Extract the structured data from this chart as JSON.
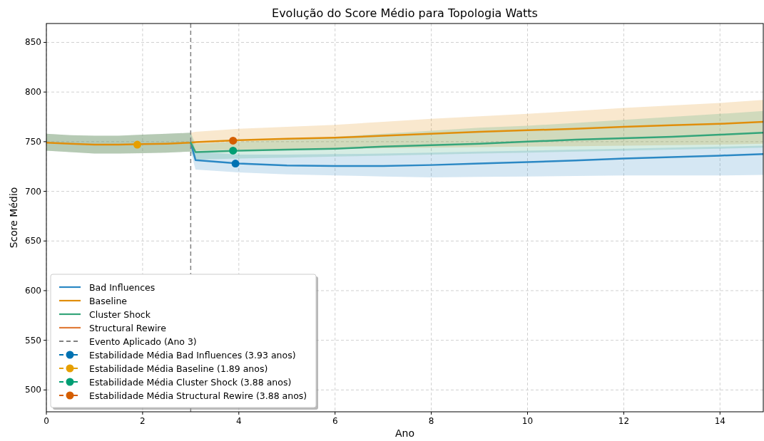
{
  "chart_data": {
    "type": "line",
    "title": "Evolução do Score Médio para Topologia Watts",
    "xlabel": "Ano",
    "ylabel": "Score Médio",
    "xlim": [
      0,
      14.9
    ],
    "xticks": [
      0,
      2,
      4,
      6,
      8,
      10,
      12,
      14
    ],
    "ylim": [
      478,
      869
    ],
    "yticks": [
      500,
      550,
      600,
      650,
      700,
      750,
      800,
      850
    ],
    "grid": true,
    "legend": "bottom left",
    "ref_lines": [
      {
        "axis": "x",
        "value": 3,
        "label": "Evento Aplicado (Ano 3)",
        "color": "#808080",
        "line_style": "dashed"
      }
    ],
    "series": [
      {
        "name": "Bad Influences",
        "color": "#2b88c4",
        "x": [
          0,
          0.5,
          1,
          1.5,
          2,
          2.5,
          3,
          3.1,
          4,
          5,
          6,
          7,
          8,
          9,
          10,
          11,
          12,
          13,
          14,
          14.9
        ],
        "values": [
          null,
          null,
          null,
          null,
          null,
          null,
          749,
          731.5,
          728,
          726,
          725.5,
          725.5,
          726.5,
          728,
          729.5,
          731,
          733,
          734.5,
          736,
          737.5
        ],
        "lower": [
          741,
          739.5,
          738,
          738,
          738.5,
          739,
          740,
          722,
          719,
          717,
          716,
          715,
          714,
          714.5,
          715,
          715.5,
          716,
          716,
          716,
          716.5
        ],
        "upper": [
          758,
          756.5,
          756,
          756,
          757,
          758,
          759,
          740,
          737,
          737,
          737.5,
          738,
          739,
          740,
          741,
          742,
          743,
          744,
          745,
          746
        ]
      },
      {
        "name": "Baseline",
        "color": "#e08e0b",
        "x": [
          0,
          0.5,
          1,
          1.5,
          2,
          2.5,
          3,
          3.1,
          4,
          5,
          6,
          7,
          8,
          9,
          10,
          11,
          12,
          13,
          14,
          14.9
        ],
        "values": [
          749,
          748,
          747,
          747,
          747.5,
          748,
          749,
          749.5,
          751.5,
          753,
          754,
          756,
          758,
          760,
          761.5,
          763,
          765,
          766.5,
          768,
          770
        ],
        "lower": [
          741,
          739.5,
          738,
          738,
          738.5,
          739,
          740,
          741,
          742,
          742.5,
          743,
          743.5,
          744,
          744.5,
          745,
          745.5,
          746,
          746.5,
          747,
          748
        ],
        "upper": [
          758,
          756.5,
          756,
          756,
          757,
          758,
          759,
          760,
          763,
          765,
          767,
          770,
          773,
          775.5,
          778,
          781,
          784,
          786.5,
          789,
          792
        ]
      },
      {
        "name": "Cluster Shock",
        "color": "#34a57a",
        "x": [
          0,
          0.5,
          1,
          1.5,
          2,
          2.5,
          3,
          3.1,
          4,
          5,
          6,
          7,
          8,
          9,
          10,
          11,
          12,
          13,
          14,
          14.9
        ],
        "values": [
          null,
          null,
          null,
          null,
          null,
          null,
          749,
          739.5,
          741,
          742,
          743,
          745,
          746.5,
          748,
          750,
          752,
          753.5,
          755,
          757,
          759
        ],
        "lower": [
          741,
          739.5,
          738,
          738,
          738.5,
          739,
          740,
          732,
          733,
          734,
          735,
          736,
          737,
          738,
          739,
          740,
          741,
          742,
          743,
          744
        ],
        "upper": [
          758,
          756.5,
          756,
          756,
          757,
          758,
          759,
          748,
          750,
          752,
          755,
          758,
          761,
          764,
          766,
          769,
          772,
          775,
          778,
          781
        ]
      },
      {
        "name": "Structural Rewire",
        "color": "#e07b39"
      },
      {
        "name": "Estabilidade Média Bad Influences (3.93 anos)",
        "type": "scatter",
        "color": "#0072b2",
        "x": [
          3.93
        ],
        "values": [
          728
        ],
        "marker": "circle",
        "line_style": "dashed"
      },
      {
        "name": "Estabilidade Média Baseline (1.89 anos)",
        "type": "scatter",
        "color": "#e69f00",
        "x": [
          1.89
        ],
        "values": [
          747
        ],
        "marker": "circle",
        "line_style": "dashed"
      },
      {
        "name": "Estabilidade Média Cluster Shock (3.88 anos)",
        "type": "scatter",
        "color": "#009e73",
        "x": [
          3.88
        ],
        "values": [
          741
        ],
        "marker": "circle",
        "line_style": "dashed"
      },
      {
        "name": "Estabilidade Média Structural Rewire (3.88 anos)",
        "type": "scatter",
        "color": "#d55e00",
        "x": [
          3.88
        ],
        "values": [
          751
        ],
        "marker": "circle",
        "line_style": "dashed"
      }
    ]
  }
}
